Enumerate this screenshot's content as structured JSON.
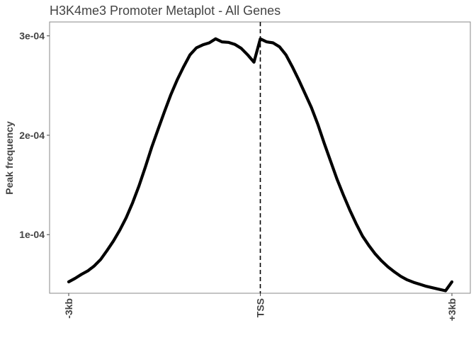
{
  "chart_data": {
    "type": "line",
    "title": "H3K4me3 Promoter Metaplot - All Genes",
    "xlabel": "",
    "ylabel": "Peak frequency",
    "xlim": [
      -3000,
      3000
    ],
    "ylim": [
      4.1e-05,
      0.000314
    ],
    "x_ticks": [
      {
        "value": -3000,
        "label": "-3kb"
      },
      {
        "value": 0,
        "label": "TSS"
      },
      {
        "value": 3000,
        "label": "+3kb"
      }
    ],
    "y_ticks": [
      {
        "value": 0.0001,
        "label": "1e-04"
      },
      {
        "value": 0.0002,
        "label": "2e-04"
      },
      {
        "value": 0.0003,
        "label": "3e-04"
      }
    ],
    "grid": false,
    "reference_line": {
      "x": 0,
      "style": "dashed"
    },
    "series": [
      {
        "color": "#000000",
        "x": [
          -3000,
          -2900,
          -2800,
          -2700,
          -2600,
          -2500,
          -2400,
          -2300,
          -2200,
          -2100,
          -2000,
          -1900,
          -1800,
          -1700,
          -1600,
          -1500,
          -1400,
          -1300,
          -1200,
          -1100,
          -1000,
          -900,
          -800,
          -700,
          -600,
          -500,
          -400,
          -300,
          -200,
          -100,
          0,
          100,
          200,
          300,
          400,
          500,
          600,
          700,
          800,
          900,
          1000,
          1100,
          1200,
          1300,
          1400,
          1500,
          1600,
          1700,
          1800,
          1900,
          2000,
          2100,
          2200,
          2300,
          2400,
          2500,
          2600,
          2700,
          2800,
          2900,
          3000
        ],
        "y": [
          5.25e-05,
          5.6e-05,
          6e-05,
          6.35e-05,
          6.85e-05,
          7.5e-05,
          8.4e-05,
          9.35e-05,
          0.0001045,
          0.000117,
          0.000132,
          0.000149,
          0.000168,
          0.000188,
          0.000206,
          0.000224,
          0.000241,
          0.000256,
          0.000269,
          0.000281,
          0.000288,
          0.000291,
          0.000293,
          0.000297,
          0.000294,
          0.0002935,
          0.0002915,
          0.0002875,
          0.000281,
          0.0002735,
          0.000297,
          0.000294,
          0.000293,
          0.000289,
          0.000281,
          0.000269,
          0.000256,
          0.000242,
          0.000228,
          0.000211,
          0.000192,
          0.000174,
          0.000156,
          0.00014,
          0.000125,
          0.000111,
          9.85e-05,
          8.9e-05,
          8.05e-05,
          7.35e-05,
          6.75e-05,
          6.25e-05,
          5.8e-05,
          5.45e-05,
          5.2e-05,
          5e-05,
          4.8e-05,
          4.65e-05,
          4.5e-05,
          4.35e-05,
          5.25e-05
        ]
      }
    ]
  }
}
